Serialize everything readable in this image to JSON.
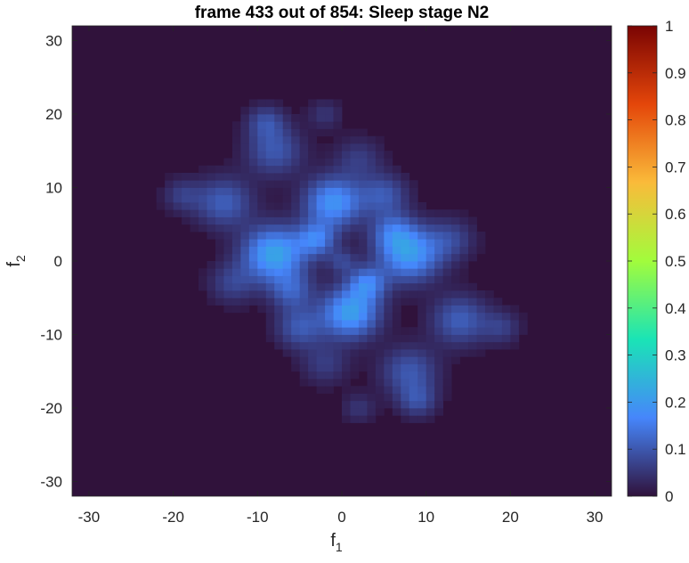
{
  "chart_data": {
    "type": "heatmap",
    "title": "frame 433 out of 854: Sleep stage N2",
    "xlabel": {
      "main": "f",
      "sub": "1"
    },
    "ylabel": {
      "main": "f",
      "sub": "2"
    },
    "xlim": [
      -32,
      32
    ],
    "ylim": [
      -32,
      32
    ],
    "xticks": [
      -30,
      -20,
      -10,
      0,
      10,
      20,
      30
    ],
    "yticks": [
      30,
      20,
      10,
      0,
      -10,
      -20,
      -30
    ],
    "colorbar": {
      "range": [
        0,
        1
      ],
      "ticks": [
        0,
        0.1,
        0.2,
        0.3,
        0.4,
        0.5,
        0.6,
        0.7,
        0.8,
        0.9,
        1
      ],
      "colormap": "turbo",
      "stops": [
        "#30123b",
        "#4686fb",
        "#1ae4b6",
        "#a2fc3c",
        "#fabb3a",
        "#e4460a",
        "#7a0403"
      ]
    },
    "background_value": 0.0,
    "peaks": [
      {
        "x": -8,
        "y": 1,
        "value": 0.22,
        "spread": 2.6
      },
      {
        "x": 8,
        "y": 1,
        "value": 0.2,
        "spread": 2.6
      },
      {
        "x": -1,
        "y": 8,
        "value": 0.19,
        "spread": 2.4
      },
      {
        "x": 1,
        "y": -7,
        "value": 0.21,
        "spread": 2.4
      },
      {
        "x": -3,
        "y": 3,
        "value": 0.14,
        "spread": 1.6
      },
      {
        "x": 3,
        "y": -3,
        "value": 0.14,
        "spread": 1.6
      },
      {
        "x": 0,
        "y": 0,
        "value": 0.07,
        "spread": 1.2
      },
      {
        "x": -14,
        "y": 8,
        "value": 0.11,
        "spread": 2.4
      },
      {
        "x": 14,
        "y": -8,
        "value": 0.11,
        "spread": 2.4
      },
      {
        "x": -8,
        "y": 15,
        "value": 0.1,
        "spread": 2.4
      },
      {
        "x": 8,
        "y": -15,
        "value": 0.1,
        "spread": 2.4
      },
      {
        "x": 5,
        "y": 9,
        "value": 0.1,
        "spread": 2.0
      },
      {
        "x": -5,
        "y": -9,
        "value": 0.1,
        "spread": 2.0
      },
      {
        "x": -9,
        "y": 19,
        "value": 0.08,
        "spread": 1.6
      },
      {
        "x": 9,
        "y": -19,
        "value": 0.08,
        "spread": 1.6
      },
      {
        "x": -19,
        "y": 9,
        "value": 0.06,
        "spread": 1.6
      },
      {
        "x": 19,
        "y": -9,
        "value": 0.06,
        "spread": 1.6
      },
      {
        "x": -13,
        "y": -3,
        "value": 0.07,
        "spread": 2.0
      },
      {
        "x": 13,
        "y": 3,
        "value": 0.07,
        "spread": 2.0
      },
      {
        "x": -6,
        "y": -4,
        "value": 0.1,
        "spread": 1.8
      },
      {
        "x": 6,
        "y": 4,
        "value": 0.1,
        "spread": 1.8
      },
      {
        "x": 2,
        "y": 14,
        "value": 0.06,
        "spread": 2.0
      },
      {
        "x": -2,
        "y": -14,
        "value": 0.06,
        "spread": 2.0
      },
      {
        "x": -2,
        "y": 20,
        "value": 0.05,
        "spread": 1.4
      },
      {
        "x": 2,
        "y": -20,
        "value": 0.05,
        "spread": 1.4
      }
    ]
  }
}
